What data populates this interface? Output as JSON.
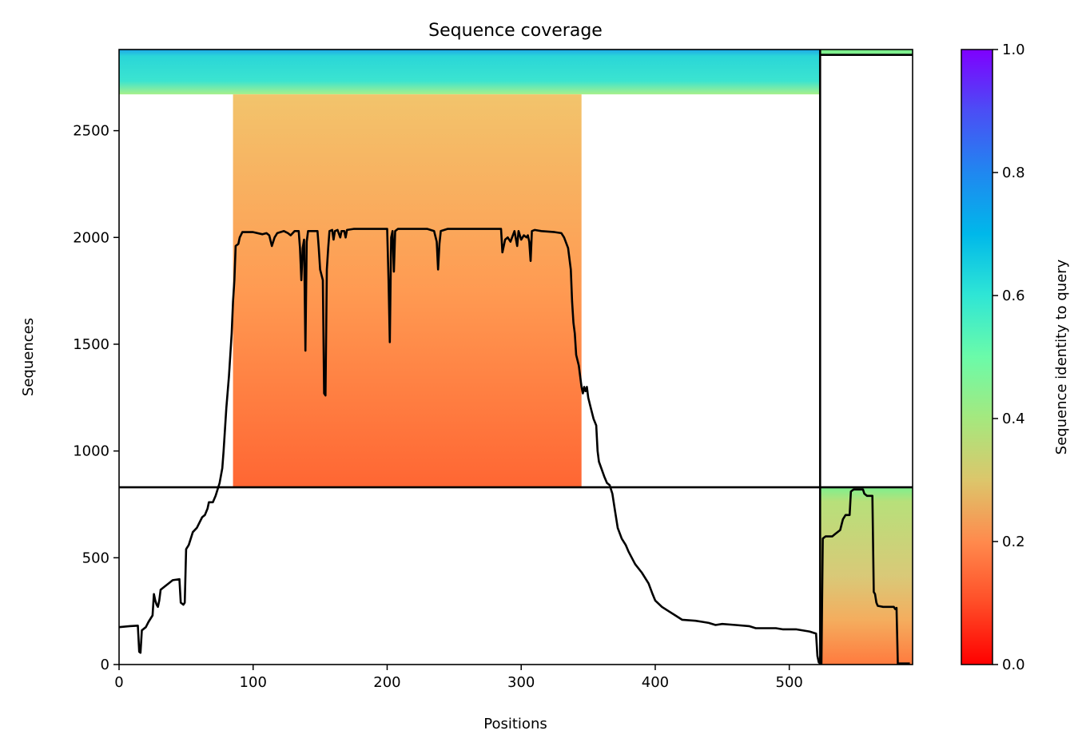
{
  "chart_data": {
    "type": "heatmap",
    "title": "Sequence coverage",
    "xlabel": "Positions",
    "ylabel": "Sequences",
    "xlim": [
      0,
      592
    ],
    "ylim": [
      0,
      2880
    ],
    "x_ticks": [
      0,
      100,
      200,
      300,
      400,
      500
    ],
    "y_ticks": [
      0,
      500,
      1000,
      1500,
      2000,
      2500
    ],
    "colorbar": {
      "label": "Sequence identity to query",
      "range": [
        0,
        1
      ],
      "ticks": [
        "0.0",
        "0.2",
        "0.4",
        "0.6",
        "0.8",
        "1.0"
      ],
      "colormap": "rainbow_r"
    },
    "chain_boundary_position": 523,
    "block_boundary_sequence": 830,
    "coverage_blocks": [
      {
        "name": "chain1-paired-high-identity",
        "x_start": 0,
        "x_end": 523,
        "y_start": 2670,
        "y_end": 2880,
        "identity_top": 0.72,
        "identity_bottom": 0.45
      },
      {
        "name": "chain1-unpaired",
        "x_start": 85,
        "x_end": 345,
        "y_start": 830,
        "y_end": 2670,
        "identity_top": 0.28,
        "identity_bottom": 0.16
      },
      {
        "name": "chain2-paired",
        "x_start": 523,
        "x_end": 592,
        "y_start": 2855,
        "y_end": 2880,
        "identity_top": 0.5,
        "identity_bottom": 0.45
      },
      {
        "name": "chain2-unpaired",
        "x_start": 523,
        "x_end": 592,
        "y_start": 0,
        "y_end": 830,
        "identity_top": 0.45,
        "identity_bottom": 0.2
      }
    ],
    "coverage_line": [
      [
        0,
        175
      ],
      [
        8,
        180
      ],
      [
        14,
        182
      ],
      [
        15,
        60
      ],
      [
        16,
        55
      ],
      [
        17,
        160
      ],
      [
        20,
        175
      ],
      [
        22,
        200
      ],
      [
        25,
        230
      ],
      [
        26,
        330
      ],
      [
        27,
        300
      ],
      [
        28,
        280
      ],
      [
        29,
        270
      ],
      [
        30,
        300
      ],
      [
        31,
        350
      ],
      [
        34,
        365
      ],
      [
        37,
        380
      ],
      [
        40,
        395
      ],
      [
        45,
        400
      ],
      [
        46,
        290
      ],
      [
        48,
        280
      ],
      [
        49,
        290
      ],
      [
        50,
        540
      ],
      [
        52,
        560
      ],
      [
        55,
        620
      ],
      [
        58,
        640
      ],
      [
        62,
        690
      ],
      [
        64,
        700
      ],
      [
        66,
        730
      ],
      [
        67,
        760
      ],
      [
        70,
        760
      ],
      [
        72,
        790
      ],
      [
        75,
        850
      ],
      [
        77,
        920
      ],
      [
        78,
        1000
      ],
      [
        79,
        1100
      ],
      [
        80,
        1200
      ],
      [
        82,
        1350
      ],
      [
        84,
        1550
      ],
      [
        85,
        1700
      ],
      [
        86,
        1800
      ],
      [
        87,
        1960
      ],
      [
        89,
        1970
      ],
      [
        90,
        2000
      ],
      [
        92,
        2025
      ],
      [
        100,
        2025
      ],
      [
        107,
        2015
      ],
      [
        110,
        2020
      ],
      [
        112,
        2010
      ],
      [
        114,
        1960
      ],
      [
        116,
        2000
      ],
      [
        118,
        2020
      ],
      [
        123,
        2030
      ],
      [
        126,
        2020
      ],
      [
        128,
        2010
      ],
      [
        131,
        2030
      ],
      [
        134,
        2030
      ],
      [
        135,
        1950
      ],
      [
        136,
        1800
      ],
      [
        137,
        1950
      ],
      [
        138,
        1990
      ],
      [
        139,
        1470
      ],
      [
        140,
        1980
      ],
      [
        141,
        2030
      ],
      [
        148,
        2030
      ],
      [
        149,
        1950
      ],
      [
        150,
        1850
      ],
      [
        152,
        1800
      ],
      [
        153,
        1270
      ],
      [
        154,
        1260
      ],
      [
        155,
        1850
      ],
      [
        156,
        1950
      ],
      [
        157,
        2030
      ],
      [
        159,
        2035
      ],
      [
        160,
        1990
      ],
      [
        161,
        2030
      ],
      [
        163,
        2035
      ],
      [
        165,
        2000
      ],
      [
        166,
        2030
      ],
      [
        168,
        2030
      ],
      [
        169,
        2000
      ],
      [
        170,
        2035
      ],
      [
        175,
        2040
      ],
      [
        180,
        2040
      ],
      [
        185,
        2040
      ],
      [
        190,
        2040
      ],
      [
        200,
        2040
      ],
      [
        201,
        1800
      ],
      [
        202,
        1510
      ],
      [
        203,
        2000
      ],
      [
        204,
        2030
      ],
      [
        205,
        1840
      ],
      [
        206,
        2030
      ],
      [
        208,
        2040
      ],
      [
        225,
        2040
      ],
      [
        230,
        2040
      ],
      [
        235,
        2030
      ],
      [
        237,
        1980
      ],
      [
        238,
        1850
      ],
      [
        239,
        1970
      ],
      [
        240,
        2030
      ],
      [
        245,
        2040
      ],
      [
        255,
        2040
      ],
      [
        270,
        2040
      ],
      [
        285,
        2040
      ],
      [
        286,
        1930
      ],
      [
        288,
        1990
      ],
      [
        290,
        2000
      ],
      [
        292,
        1980
      ],
      [
        295,
        2030
      ],
      [
        297,
        1960
      ],
      [
        298,
        2030
      ],
      [
        300,
        1990
      ],
      [
        302,
        2010
      ],
      [
        304,
        2000
      ],
      [
        305,
        2010
      ],
      [
        306,
        1980
      ],
      [
        307,
        1890
      ],
      [
        308,
        2030
      ],
      [
        310,
        2035
      ],
      [
        315,
        2030
      ],
      [
        325,
        2025
      ],
      [
        330,
        2020
      ],
      [
        332,
        2000
      ],
      [
        335,
        1950
      ],
      [
        336,
        1900
      ],
      [
        337,
        1850
      ],
      [
        338,
        1700
      ],
      [
        339,
        1600
      ],
      [
        340,
        1550
      ],
      [
        341,
        1450
      ],
      [
        343,
        1400
      ],
      [
        344,
        1350
      ],
      [
        345,
        1300
      ],
      [
        346,
        1270
      ],
      [
        347,
        1300
      ],
      [
        348,
        1280
      ],
      [
        349,
        1300
      ],
      [
        350,
        1250
      ],
      [
        352,
        1200
      ],
      [
        354,
        1150
      ],
      [
        356,
        1120
      ],
      [
        357,
        1000
      ],
      [
        358,
        950
      ],
      [
        362,
        880
      ],
      [
        364,
        850
      ],
      [
        366,
        840
      ],
      [
        368,
        800
      ],
      [
        370,
        720
      ],
      [
        372,
        640
      ],
      [
        375,
        590
      ],
      [
        378,
        560
      ],
      [
        380,
        530
      ],
      [
        385,
        470
      ],
      [
        390,
        430
      ],
      [
        395,
        380
      ],
      [
        398,
        330
      ],
      [
        400,
        300
      ],
      [
        405,
        270
      ],
      [
        410,
        250
      ],
      [
        415,
        230
      ],
      [
        420,
        210
      ],
      [
        430,
        205
      ],
      [
        435,
        200
      ],
      [
        440,
        195
      ],
      [
        445,
        185
      ],
      [
        450,
        190
      ],
      [
        460,
        185
      ],
      [
        470,
        180
      ],
      [
        475,
        170
      ],
      [
        490,
        170
      ],
      [
        495,
        165
      ],
      [
        505,
        165
      ],
      [
        515,
        155
      ],
      [
        520,
        145
      ],
      [
        521,
        40
      ],
      [
        522,
        10
      ],
      [
        523,
        5
      ],
      [
        524,
        5
      ],
      [
        525,
        590
      ],
      [
        527,
        600
      ],
      [
        532,
        600
      ],
      [
        534,
        610
      ],
      [
        538,
        630
      ],
      [
        540,
        680
      ],
      [
        542,
        700
      ],
      [
        545,
        700
      ],
      [
        546,
        810
      ],
      [
        548,
        820
      ],
      [
        552,
        820
      ],
      [
        555,
        820
      ],
      [
        556,
        800
      ],
      [
        558,
        790
      ],
      [
        560,
        790
      ],
      [
        562,
        790
      ],
      [
        563,
        340
      ],
      [
        564,
        330
      ],
      [
        565,
        290
      ],
      [
        566,
        275
      ],
      [
        570,
        270
      ],
      [
        578,
        270
      ],
      [
        579,
        260
      ],
      [
        580,
        265
      ],
      [
        581,
        5
      ],
      [
        583,
        5
      ],
      [
        585,
        5
      ],
      [
        590,
        5
      ]
    ]
  }
}
